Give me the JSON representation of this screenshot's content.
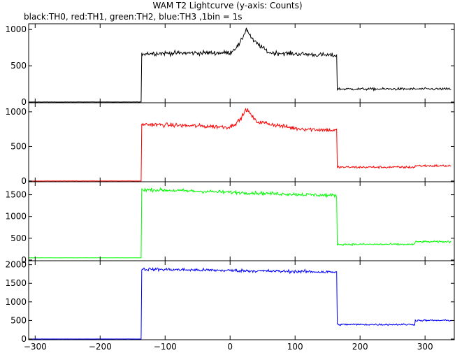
{
  "title": "WAM T2 Lightcurve (y-axis: Counts)",
  "subtitle": "black:TH0, red:TH1, green:TH2, blue:TH3 ,1bin = 1s",
  "chart_data": {
    "type": "line",
    "title": "WAM T2 Lightcurve (y-axis: Counts)",
    "subtitle": "black:TH0, red:TH1, green:TH2, blue:TH3 ,1bin = 1s",
    "xlim": [
      -310,
      345
    ],
    "xticks": [
      -300,
      -200,
      -100,
      0,
      100,
      200,
      300
    ],
    "xlabel": "",
    "panels": [
      {
        "series_name": "TH0",
        "color": "#000000",
        "ylim": [
          0,
          1050
        ],
        "yticks": [
          0,
          500,
          1000
        ],
        "baseline": 0,
        "onset": -136,
        "offset": 165,
        "keypoints": [
          [
            -136,
            670
          ],
          [
            0,
            680
          ],
          [
            15,
            800
          ],
          [
            25,
            1010
          ],
          [
            35,
            850
          ],
          [
            60,
            680
          ],
          [
            165,
            640
          ]
        ],
        "post_level": 180,
        "post_step_x": 285,
        "post_level_2": 180,
        "noise": 22
      },
      {
        "series_name": "TH1",
        "color": "#ff0000",
        "ylim": [
          0,
          1100
        ],
        "yticks": [
          0,
          500,
          1000
        ],
        "baseline": 0,
        "onset": -136,
        "offset": 165,
        "keypoints": [
          [
            -136,
            820
          ],
          [
            0,
            780
          ],
          [
            15,
            880
          ],
          [
            25,
            1040
          ],
          [
            40,
            860
          ],
          [
            100,
            760
          ],
          [
            165,
            730
          ]
        ],
        "post_level": 200,
        "post_step_x": 285,
        "post_level_2": 220,
        "noise": 22
      },
      {
        "series_name": "TH2",
        "color": "#00ff00",
        "ylim": [
          0,
          1750
        ],
        "yticks": [
          0,
          500,
          1000,
          1500
        ],
        "baseline": 50,
        "onset": -136,
        "offset": 165,
        "keypoints": [
          [
            -136,
            1620
          ],
          [
            165,
            1480
          ]
        ],
        "post_level": 360,
        "post_step_x": 285,
        "post_level_2": 420,
        "noise": 28
      },
      {
        "series_name": "TH3",
        "color": "#0000ff",
        "ylim": [
          0,
          2050
        ],
        "yticks": [
          0,
          500,
          1000,
          1500,
          2000
        ],
        "baseline": 0,
        "onset": -136,
        "offset": 165,
        "keypoints": [
          [
            -136,
            1880
          ],
          [
            165,
            1800
          ]
        ],
        "post_level": 390,
        "post_step_x": 285,
        "post_level_2": 500,
        "noise": 30
      }
    ]
  }
}
